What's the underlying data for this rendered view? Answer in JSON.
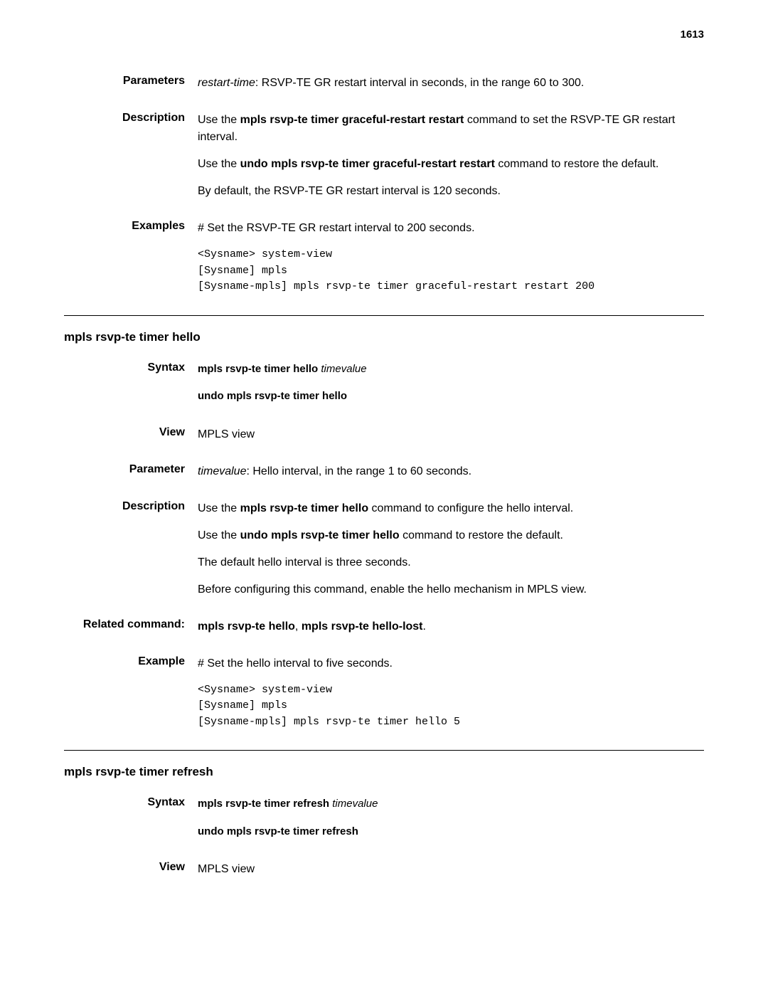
{
  "page_number": "1613",
  "section1": {
    "parameters": {
      "label": "Parameters",
      "param_name": "restart-time",
      "param_desc": ": RSVP-TE GR restart interval in seconds, in the range 60 to 300."
    },
    "description": {
      "label": "Description",
      "p1_pre": "Use the ",
      "p1_bold": "mpls rsvp-te timer graceful-restart restart",
      "p1_post": " command to set the RSVP-TE GR restart interval.",
      "p2_pre": "Use the ",
      "p2_bold": "undo mpls rsvp-te timer graceful-restart restart",
      "p2_post": " command to restore the default.",
      "p3": "By default, the RSVP-TE GR restart interval is 120 seconds."
    },
    "examples": {
      "label": "Examples",
      "intro": "# Set the RSVP-TE GR restart interval to 200 seconds.",
      "code": "<Sysname> system-view\n[Sysname] mpls\n[Sysname-mpls] mpls rsvp-te timer graceful-restart restart 200"
    }
  },
  "section2": {
    "title": "mpls rsvp-te timer hello",
    "syntax": {
      "label": "Syntax",
      "line1_bold": "mpls rsvp-te timer hello ",
      "line1_italic": "timevalue",
      "line2": "undo mpls rsvp-te timer hello"
    },
    "view": {
      "label": "View",
      "text": "MPLS view"
    },
    "parameter": {
      "label": "Parameter",
      "param_name": "timevalue",
      "param_desc": ": Hello interval, in the range 1 to 60 seconds."
    },
    "description": {
      "label": "Description",
      "p1_pre": "Use the ",
      "p1_bold": "mpls rsvp-te timer hello",
      "p1_post": " command to configure the hello interval.",
      "p2_pre": "Use the ",
      "p2_bold": "undo mpls rsvp-te timer hello",
      "p2_post": " command to restore the default.",
      "p3": "The default hello interval is three seconds.",
      "p4": "Before configuring this command, enable the hello mechanism in MPLS view."
    },
    "related": {
      "label": "Related command:",
      "b1": "mpls rsvp-te hello",
      "sep": ", ",
      "b2": "mpls rsvp-te hello-lost",
      "end": "."
    },
    "example": {
      "label": "Example",
      "intro": "# Set the hello interval to five seconds.",
      "code": "<Sysname> system-view\n[Sysname] mpls\n[Sysname-mpls] mpls rsvp-te timer hello 5"
    }
  },
  "section3": {
    "title": "mpls rsvp-te timer refresh",
    "syntax": {
      "label": "Syntax",
      "line1_bold": "mpls rsvp-te timer refresh ",
      "line1_italic": "timevalue",
      "line2": "undo mpls rsvp-te timer refresh"
    },
    "view": {
      "label": "View",
      "text": "MPLS view"
    }
  }
}
